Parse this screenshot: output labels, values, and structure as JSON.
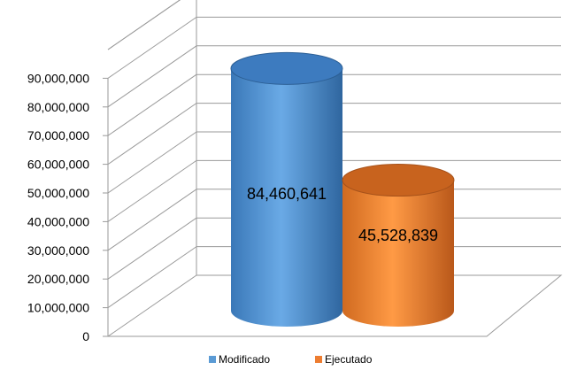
{
  "chart_data": {
    "type": "bar",
    "bar_shape": "3d-cylinder",
    "categories": [
      "Modificado",
      "Ejecutado"
    ],
    "values": [
      84460641,
      45528839
    ],
    "data_labels": [
      "84,460,641",
      "45,528,839"
    ],
    "colors": [
      "#5b9bd5",
      "#ed7d31"
    ],
    "ylim": [
      0,
      90000000
    ],
    "yticks": [
      "0",
      "10,000,000",
      "20,000,000",
      "30,000,000",
      "40,000,000",
      "50,000,000",
      "60,000,000",
      "70,000,000",
      "80,000,000",
      "90,000,000"
    ],
    "grid": true,
    "legend": {
      "position": "bottom",
      "entries": [
        "Modificado",
        "Ejecutado"
      ]
    },
    "title": "",
    "xlabel": "",
    "ylabel": ""
  }
}
